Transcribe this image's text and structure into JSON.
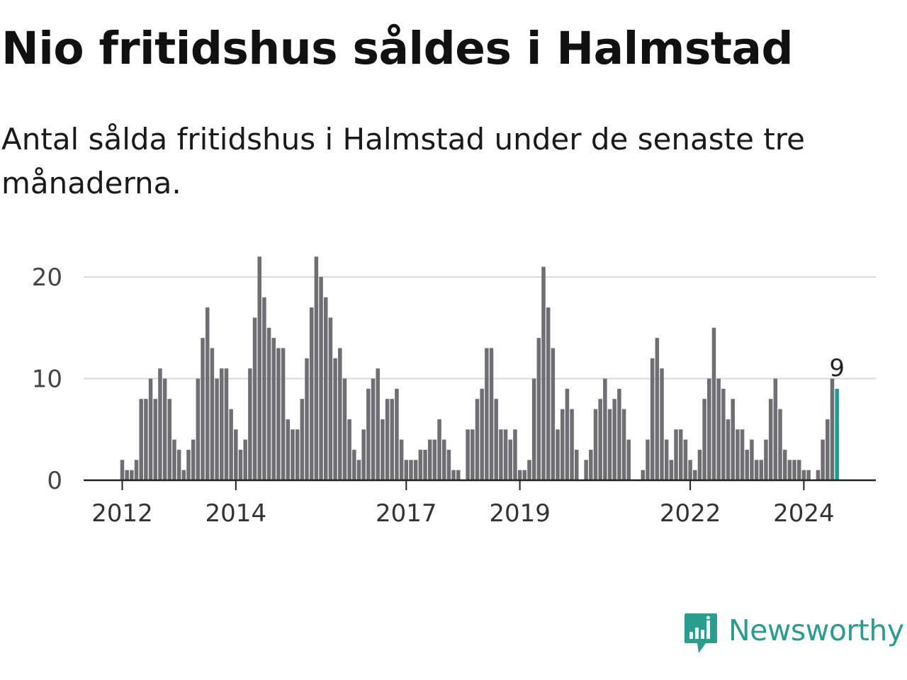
{
  "header": {
    "title": "Nio fritidshus såldes i Halmstad",
    "subtitle": "Antal sålda fritidshus i Halmstad under de senaste tre månaderna."
  },
  "branding": {
    "logo_text": "Newsworthy",
    "logo_icon": "bar-chart-speech-bubble-icon"
  },
  "chart_data": {
    "type": "bar",
    "x_start": "2012-01",
    "x_step": "1 month",
    "yticks": [
      0,
      10,
      20
    ],
    "ylim": [
      0,
      22
    ],
    "xticks": [
      {
        "label": "2012",
        "x": "2012-01"
      },
      {
        "label": "2014",
        "x": "2014-01"
      },
      {
        "label": "2017",
        "x": "2017-01"
      },
      {
        "label": "2019",
        "x": "2019-01"
      },
      {
        "label": "2022",
        "x": "2022-01"
      },
      {
        "label": "2024",
        "x": "2024-01"
      }
    ],
    "values": [
      2,
      1,
      1,
      2,
      8,
      8,
      10,
      8,
      11,
      10,
      8,
      4,
      3,
      1,
      3,
      4,
      10,
      14,
      17,
      13,
      10,
      11,
      11,
      7,
      5,
      3,
      4,
      11,
      16,
      22,
      18,
      15,
      14,
      13,
      13,
      6,
      5,
      5,
      8,
      12,
      17,
      22,
      20,
      18,
      16,
      12,
      13,
      10,
      6,
      3,
      2,
      5,
      9,
      10,
      11,
      6,
      8,
      8,
      9,
      4,
      2,
      2,
      2,
      3,
      3,
      4,
      4,
      6,
      4,
      3,
      1,
      1,
      0,
      5,
      5,
      8,
      9,
      13,
      13,
      8,
      5,
      5,
      4,
      5,
      1,
      1,
      2,
      10,
      14,
      21,
      17,
      13,
      5,
      7,
      9,
      7,
      3,
      0,
      2,
      3,
      7,
      8,
      10,
      7,
      8,
      9,
      7,
      4,
      0,
      0,
      1,
      4,
      12,
      14,
      11,
      4,
      2,
      5,
      5,
      4,
      2,
      1,
      3,
      8,
      10,
      15,
      10,
      9,
      6,
      8,
      5,
      5,
      3,
      4,
      2,
      2,
      4,
      8,
      10,
      7,
      3,
      2,
      2,
      2,
      1,
      1,
      0,
      1,
      4,
      6,
      10,
      9
    ],
    "highlight_last": true,
    "last_value_label": "9",
    "colors": {
      "bar": "#6e6e73",
      "highlight": "#1a9e8f",
      "grid": "#d9d9d9",
      "axis": "#222222"
    }
  }
}
